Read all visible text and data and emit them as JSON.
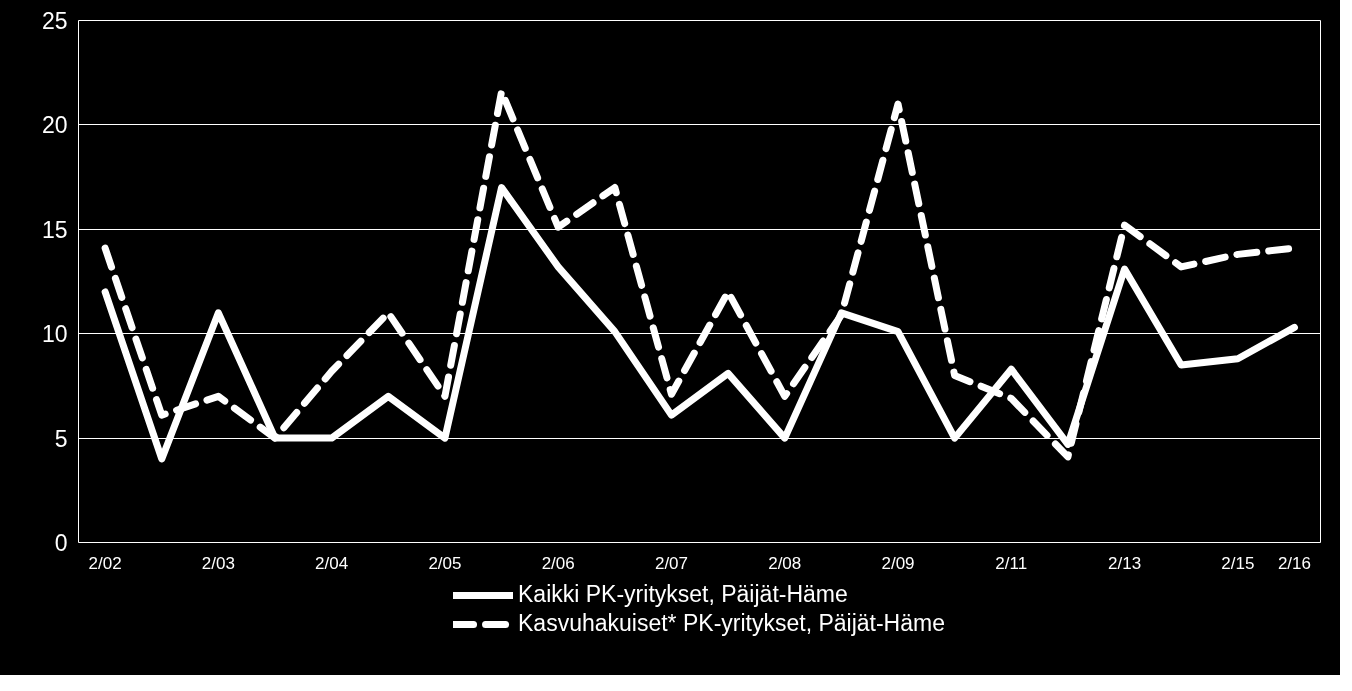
{
  "chart_data": {
    "type": "line",
    "categories": [
      "2/02",
      null,
      "2/03",
      null,
      "2/04",
      null,
      "2/05",
      null,
      "2/06",
      null,
      "2/07",
      null,
      "2/08",
      null,
      "2/09",
      null,
      "2/11",
      null,
      "2/13",
      null,
      "2/15",
      "2/16"
    ],
    "series": [
      {
        "name": "Kaikki PK-yritykset, Päijät-Häme",
        "color": "#ffffff",
        "line_style": "solid",
        "values": [
          12,
          4,
          11,
          5,
          5,
          7,
          5,
          17,
          13.2,
          10.1,
          6.1,
          8.1,
          5,
          11,
          10.1,
          5,
          8.3,
          4.7,
          13.1,
          8.5,
          8.8,
          10.3
        ]
      },
      {
        "name": "Kasvuhakuiset* PK-yritykset, Päijät-Häme",
        "color": "#ffffff",
        "line_style": "dashed",
        "values": [
          14.1,
          6.1,
          7,
          5,
          8.2,
          11,
          7,
          21.6,
          15.1,
          17,
          7.1,
          12,
          7,
          10.9,
          21,
          8,
          6.9,
          4.1,
          15.2,
          13.2,
          13.8,
          14.1
        ]
      }
    ],
    "ylim": [
      0,
      25
    ],
    "yticks": [
      0,
      5,
      10,
      15,
      20,
      25
    ],
    "grid": "y",
    "legend": "bottom",
    "marker": "none"
  }
}
